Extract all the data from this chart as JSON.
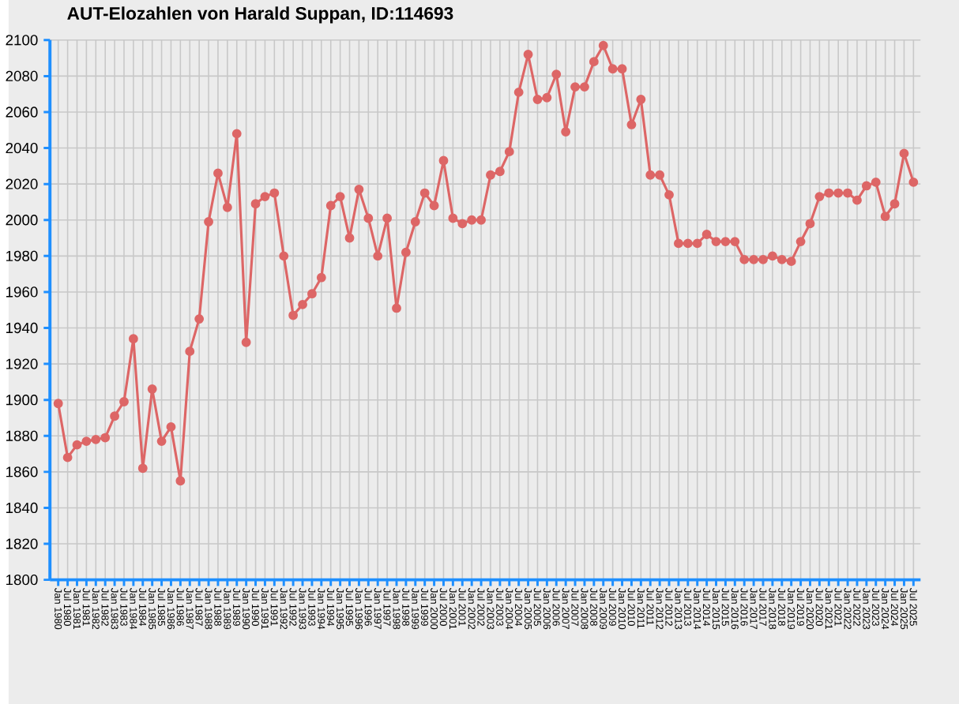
{
  "chart_data": {
    "type": "line",
    "title": "AUT-Elozahlen von Harald Suppan, ID:114693",
    "categories": [
      "Jan 1980",
      "Jul 1980",
      "Jan 1981",
      "Jul 1981",
      "Jan 1982",
      "Jul 1982",
      "Jan 1983",
      "Jul 1983",
      "Jan 1984",
      "Jul 1984",
      "Jan 1985",
      "Jul 1985",
      "Jan 1986",
      "Jul 1986",
      "Jan 1987",
      "Jul 1987",
      "Jan 1988",
      "Jul 1988",
      "Jan 1989",
      "Jul 1989",
      "Jan 1990",
      "Jul 1990",
      "Jan 1991",
      "Jul 1991",
      "Jan 1992",
      "Jul 1992",
      "Jan 1993",
      "Jul 1993",
      "Jan 1994",
      "Jul 1994",
      "Jan 1995",
      "Jul 1995",
      "Jan 1996",
      "Jul 1996",
      "Jan 1997",
      "Jul 1997",
      "Jan 1998",
      "Jul 1998",
      "Jan 1999",
      "Jul 1999",
      "Jan 2000",
      "Jul 2000",
      "Jan 2001",
      "Jul 2001",
      "Jan 2002",
      "Jul 2002",
      "Jan 2003",
      "Jul 2003",
      "Jan 2004",
      "Jul 2004",
      "Jan 2005",
      "Jul 2005",
      "Jan 2006",
      "Jul 2006",
      "Jan 2007",
      "Jul 2007",
      "Jan 2008",
      "Jul 2008",
      "Jan 2009",
      "Jul 2009",
      "Jan 2010",
      "Jul 2010",
      "Jan 2011",
      "Jul 2011",
      "Jan 2012",
      "Jul 2012",
      "Jan 2013",
      "Jul 2013",
      "Jan 2014",
      "Jul 2014",
      "Jan 2015",
      "Jul 2015",
      "Jan 2016",
      "Jul 2016",
      "Jan 2017",
      "Jul 2017",
      "Jan 2018",
      "Jul 2018",
      "Jan 2019",
      "Jul 2019",
      "Jan 2020",
      "Jul 2020",
      "Jan 2021",
      "Jul 2021",
      "Jan 2022",
      "Jul 2022",
      "Jan 2023",
      "Jul 2023",
      "Jan 2024",
      "Jul 2024",
      "Jan 2025",
      "Jul 2025"
    ],
    "series": [
      {
        "color": "#dd6666",
        "values": [
          1898,
          1868,
          1875,
          1877,
          1878,
          1879,
          1891,
          1899,
          1934,
          1862,
          1906,
          1877,
          1885,
          1855,
          1927,
          1945,
          1999,
          2026,
          2007,
          2048,
          1932,
          2009,
          2013,
          2015,
          1980,
          1947,
          1953,
          1959,
          1968,
          2008,
          2013,
          1990,
          2017,
          2001,
          1980,
          2001,
          1951,
          1982,
          1999,
          2015,
          2008,
          2033,
          2001,
          1998,
          2000,
          2000,
          2025,
          2027,
          2038,
          2071,
          2092,
          2067,
          2068,
          2081,
          2049,
          2074,
          2074,
          2088,
          2097,
          2084,
          2084,
          2053,
          2067,
          2025,
          2025,
          2014,
          1987,
          1987,
          1987,
          1992,
          1988,
          1988,
          1988,
          1978,
          1978,
          1978,
          1980,
          1978,
          1977,
          1988,
          1998,
          2013,
          2015,
          2015,
          2015,
          2011,
          2019,
          2021,
          2002,
          2009,
          2037,
          2021
        ]
      }
    ],
    "ylim": [
      1800,
      2100
    ],
    "yticks": [
      1800,
      1820,
      1840,
      1860,
      1880,
      1900,
      1920,
      1940,
      1960,
      1980,
      2000,
      2020,
      2040,
      2060,
      2080,
      2100
    ],
    "grid": true,
    "marker": "circle",
    "line_style": "solid"
  }
}
